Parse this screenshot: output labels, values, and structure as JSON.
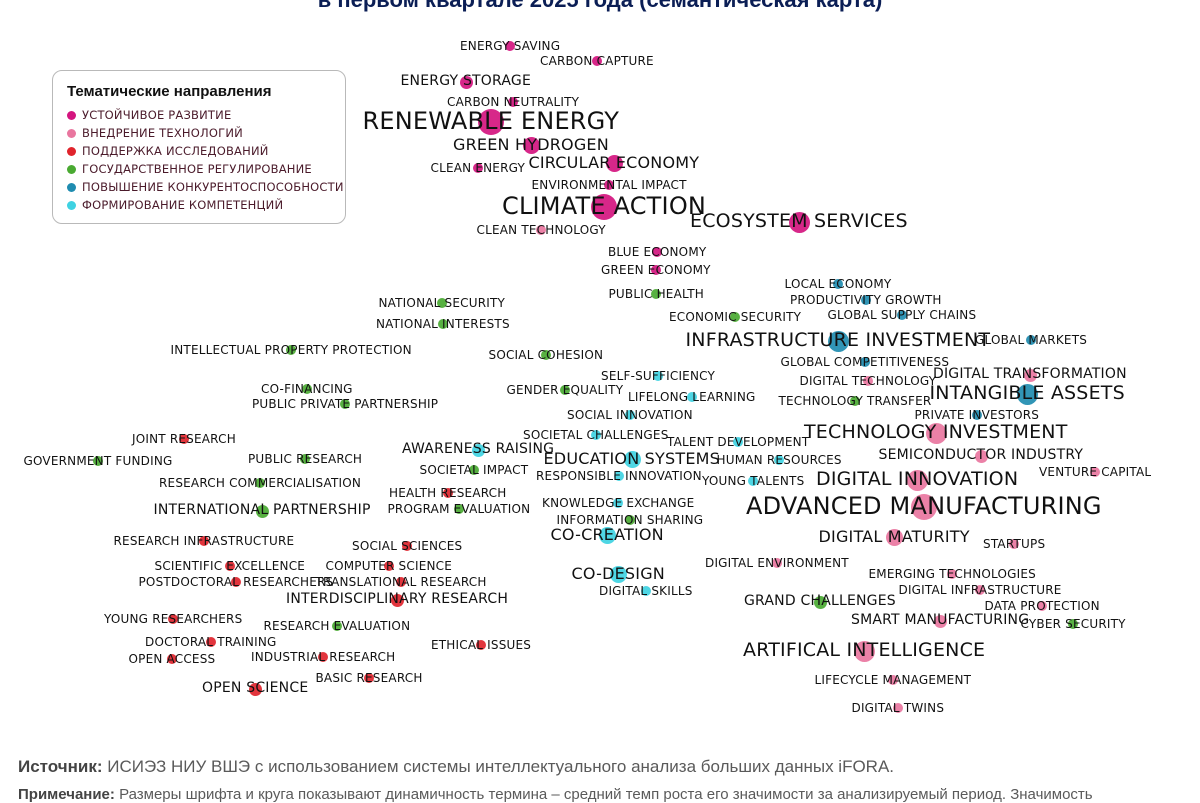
{
  "title": "в первом квартале 2025 года (семантическая карта)",
  "legend": {
    "title": "Тематические направления",
    "items": [
      {
        "id": "sd",
        "label": "УСТОЙЧИВОЕ РАЗВИТИЕ",
        "color": "#d4157f"
      },
      {
        "id": "ti",
        "label": "ВНЕДРЕНИЕ ТЕХНОЛОГИЙ",
        "color": "#e9769f"
      },
      {
        "id": "rs",
        "label": "ПОДДЕРЖКА ИССЛЕДОВАНИЙ",
        "color": "#e0242c"
      },
      {
        "id": "gr",
        "label": "ГОСУДАРСТВЕННОЕ РЕГУЛИРОВАНИЕ",
        "color": "#4aaa32"
      },
      {
        "id": "comp",
        "label": "ПОВЫШЕНИЕ КОНКУРЕНТОСПОСОБНОСТИ",
        "color": "#1f8cb0"
      },
      {
        "id": "skill",
        "label": "ФОРМИРОВАНИЕ КОМПЕТЕНЦИЙ",
        "color": "#3fd2e2"
      }
    ]
  },
  "terms": [
    {
      "label": "ENERGY SAVING",
      "cat": "sd",
      "size": 1
    },
    {
      "label": "CARBON CAPTURE",
      "cat": "sd",
      "size": 1
    },
    {
      "label": "ENERGY STORAGE",
      "cat": "sd",
      "size": 2
    },
    {
      "label": "CARBON NEUTRALITY",
      "cat": "sd",
      "size": 1
    },
    {
      "label": "RENEWABLE ENERGY",
      "cat": "sd",
      "size": 5
    },
    {
      "label": "GREEN HYDROGEN",
      "cat": "sd",
      "size": 3
    },
    {
      "label": "CIRCULAR ECONOMY",
      "cat": "sd",
      "size": 3
    },
    {
      "label": "CLEAN ENERGY",
      "cat": "sd",
      "size": 1
    },
    {
      "label": "ENVIRONMENTAL IMPACT",
      "cat": "sd",
      "size": 1
    },
    {
      "label": "CLIMATE ACTION",
      "cat": "sd",
      "size": 5
    },
    {
      "label": "ECOSYSTEM SERVICES",
      "cat": "sd",
      "size": 4
    },
    {
      "label": "CLEAN TECHNOLOGY",
      "cat": "ti",
      "size": 1
    },
    {
      "label": "BLUE ECONOMY",
      "cat": "sd",
      "size": 1
    },
    {
      "label": "GREEN ECONOMY",
      "cat": "sd",
      "size": 1
    },
    {
      "label": "PUBLIC HEALTH",
      "cat": "gr",
      "size": 1
    },
    {
      "label": "LOCAL ECONOMY",
      "cat": "comp",
      "size": 1
    },
    {
      "label": "PRODUCTIVITY GROWTH",
      "cat": "comp",
      "size": 1
    },
    {
      "label": "GLOBAL SUPPLY CHAINS",
      "cat": "comp",
      "size": 1
    },
    {
      "label": "NATIONAL SECURITY",
      "cat": "gr",
      "size": 1
    },
    {
      "label": "ECONOMIC SECURITY",
      "cat": "gr",
      "size": 1
    },
    {
      "label": "NATIONAL INTERESTS",
      "cat": "gr",
      "size": 1
    },
    {
      "label": "INFRASTRUCTURE INVESTMENT",
      "cat": "comp",
      "size": 4
    },
    {
      "label": "GLOBAL MARKETS",
      "cat": "comp",
      "size": 1
    },
    {
      "label": "INTELLECTUAL PROPERTY PROTECTION",
      "cat": "gr",
      "size": 1
    },
    {
      "label": "SOCIAL COHESION",
      "cat": "gr",
      "size": 1
    },
    {
      "label": "GLOBAL COMPETITIVENESS",
      "cat": "comp",
      "size": 1
    },
    {
      "label": "SELF-SUFFICIENCY",
      "cat": "skill",
      "size": 1
    },
    {
      "label": "DIGITAL TECHNOLOGY",
      "cat": "ti",
      "size": 1
    },
    {
      "label": "DIGITAL TRANSFORMATION",
      "cat": "ti",
      "size": 2
    },
    {
      "label": "CO-FINANCING",
      "cat": "gr",
      "size": 1
    },
    {
      "label": "GENDER EQUALITY",
      "cat": "gr",
      "size": 1
    },
    {
      "label": "LIFELONG LEARNING",
      "cat": "skill",
      "size": 1
    },
    {
      "label": "INTANGIBLE ASSETS",
      "cat": "comp",
      "size": 4
    },
    {
      "label": "PUBLIC PRIVATE PARTNERSHIP",
      "cat": "gr",
      "size": 1
    },
    {
      "label": "TECHNOLOGY TRANSFER",
      "cat": "gr",
      "size": 1
    },
    {
      "label": "SOCIAL INNOVATION",
      "cat": "skill",
      "size": 1
    },
    {
      "label": "PRIVATE INVESTORS",
      "cat": "comp",
      "size": 1
    },
    {
      "label": "TECHNOLOGY INVESTMENT",
      "cat": "ti",
      "size": 4
    },
    {
      "label": "SOCIETAL CHALLENGES",
      "cat": "skill",
      "size": 1
    },
    {
      "label": "JOINT RESEARCH",
      "cat": "rs",
      "size": 1
    },
    {
      "label": "TALENT DEVELOPMENT",
      "cat": "skill",
      "size": 1
    },
    {
      "label": "AWARENESS RAISING",
      "cat": "skill",
      "size": 2
    },
    {
      "label": "GOVERNMENT FUNDING",
      "cat": "gr",
      "size": 1
    },
    {
      "label": "PUBLIC RESEARCH",
      "cat": "gr",
      "size": 1
    },
    {
      "label": "EDUCATION SYSTEMS",
      "cat": "skill",
      "size": 3
    },
    {
      "label": "HUMAN RESOURCES",
      "cat": "skill",
      "size": 1
    },
    {
      "label": "SEMICONDUCTOR INDUSTRY",
      "cat": "ti",
      "size": 2
    },
    {
      "label": "SOCIETAL IMPACT",
      "cat": "gr",
      "size": 1
    },
    {
      "label": "RESPONSIBLE INNOVATION",
      "cat": "skill",
      "size": 1
    },
    {
      "label": "VENTURE CAPITAL",
      "cat": "ti",
      "size": 1
    },
    {
      "label": "DIGITAL INNOVATION",
      "cat": "ti",
      "size": 4
    },
    {
      "label": "YOUNG TALENTS",
      "cat": "skill",
      "size": 1
    },
    {
      "label": "RESEARCH COMMERCIALISATION",
      "cat": "gr",
      "size": 1
    },
    {
      "label": "HEALTH RESEARCH",
      "cat": "rs",
      "size": 1
    },
    {
      "label": "ADVANCED MANUFACTURING",
      "cat": "ti",
      "size": 5
    },
    {
      "label": "KNOWLEDGE EXCHANGE",
      "cat": "skill",
      "size": 1
    },
    {
      "label": "PROGRAM EVALUATION",
      "cat": "gr",
      "size": 1
    },
    {
      "label": "INTERNATIONAL PARTNERSHIP",
      "cat": "gr",
      "size": 2
    },
    {
      "label": "INFORMATION SHARING",
      "cat": "gr",
      "size": 1
    },
    {
      "label": "CO-CREATION",
      "cat": "skill",
      "size": 3
    },
    {
      "label": "DIGITAL MATURITY",
      "cat": "ti",
      "size": 3
    },
    {
      "label": "RESEARCH INFRASTRUCTURE",
      "cat": "rs",
      "size": 1
    },
    {
      "label": "SOCIAL SCIENCES",
      "cat": "rs",
      "size": 1
    },
    {
      "label": "STARTUPS",
      "cat": "ti",
      "size": 1
    },
    {
      "label": "DIGITAL ENVIRONMENT",
      "cat": "ti",
      "size": 1
    },
    {
      "label": "SCIENTIFIC EXCELLENCE",
      "cat": "rs",
      "size": 1
    },
    {
      "label": "COMPUTER SCIENCE",
      "cat": "rs",
      "size": 1
    },
    {
      "label": "EMERGING TECHNOLOGIES",
      "cat": "ti",
      "size": 1
    },
    {
      "label": "CO-DESIGN",
      "cat": "skill",
      "size": 3
    },
    {
      "label": "POSTDOCTORAL RESEARCHERS",
      "cat": "rs",
      "size": 1
    },
    {
      "label": "TRANSLATIONAL RESEARCH",
      "cat": "rs",
      "size": 1
    },
    {
      "label": "DIGITAL INFRASTRUCTURE",
      "cat": "ti",
      "size": 1
    },
    {
      "label": "DIGITAL SKILLS",
      "cat": "skill",
      "size": 1
    },
    {
      "label": "INTERDISCIPLINARY RESEARCH",
      "cat": "rs",
      "size": 2
    },
    {
      "label": "GRAND CHALLENGES",
      "cat": "gr",
      "size": 2
    },
    {
      "label": "DATA PROTECTION",
      "cat": "ti",
      "size": 1
    },
    {
      "label": "YOUNG RESEARCHERS",
      "cat": "rs",
      "size": 1
    },
    {
      "label": "SMART MANUFACTURING",
      "cat": "ti",
      "size": 2
    },
    {
      "label": "CYBER SECURITY",
      "cat": "gr",
      "size": 1
    },
    {
      "label": "RESEARCH EVALUATION",
      "cat": "gr",
      "size": 1
    },
    {
      "label": "DOCTORAL TRAINING",
      "cat": "rs",
      "size": 1
    },
    {
      "label": "ETHICAL ISSUES",
      "cat": "rs",
      "size": 1
    },
    {
      "label": "ARTIFICAL INTELLIGENCE",
      "cat": "ti",
      "size": 4
    },
    {
      "label": "OPEN ACCESS",
      "cat": "rs",
      "size": 1
    },
    {
      "label": "INDUSTRIAL RESEARCH",
      "cat": "rs",
      "size": 1
    },
    {
      "label": "LIFECYCLE MANAGEMENT",
      "cat": "ti",
      "size": 1
    },
    {
      "label": "BASIC RESEARCH",
      "cat": "rs",
      "size": 1
    },
    {
      "label": "OPEN SCIENCE",
      "cat": "rs",
      "size": 2
    },
    {
      "label": "DIGITAL TWINS",
      "cat": "ti",
      "size": 1
    }
  ],
  "footer": {
    "source_label": "Источник:",
    "source_text": "ИСИЭЗ НИУ ВШЭ с использованием системы интеллектуального анализа больших данных iFORA.",
    "note_label": "Примечание:",
    "note_text": "Размеры шрифта и круга показывают динамичность термина – средний темп роста его значимости за анализируемый период. Значимость"
  }
}
